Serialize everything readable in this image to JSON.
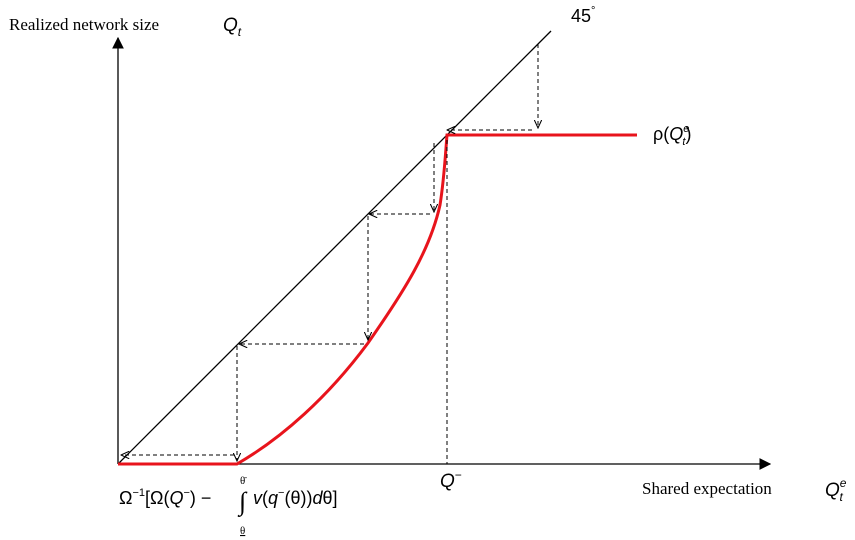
{
  "diagram": {
    "y_axis_label": "Realized network size",
    "y_axis_symbol": "Q",
    "y_axis_symbol_sub": "t",
    "x_axis_label": "Shared expectation",
    "x_axis_symbol": "Q",
    "x_axis_symbol_sup": "e",
    "x_axis_symbol_sub": "t",
    "diagonal_label": "45",
    "diagonal_degree": "°",
    "curve_label": {
      "rho": "ρ(",
      "q": "Q",
      "sup": "e",
      "sub": "t",
      "close": ")"
    },
    "threshold_label": {
      "q": "Q",
      "sup": "−"
    },
    "origin_formula": {
      "omega_inv": "Ω",
      "inv_sup": "−1",
      "part1": "[Ω(",
      "q": "Q",
      "q_sup": "−",
      "part2": ") − ",
      "integral": "∫",
      "upper": "θ̄",
      "lower": "θ",
      "v": "v",
      "part3": "(",
      "q2": "q",
      "q2_sup": "−",
      "part4": "(θ))",
      "d": "d",
      "theta": "θ",
      "close": "]"
    },
    "colors": {
      "curve": "#e8141c",
      "axes": "#000000",
      "guides": "#000000"
    }
  }
}
